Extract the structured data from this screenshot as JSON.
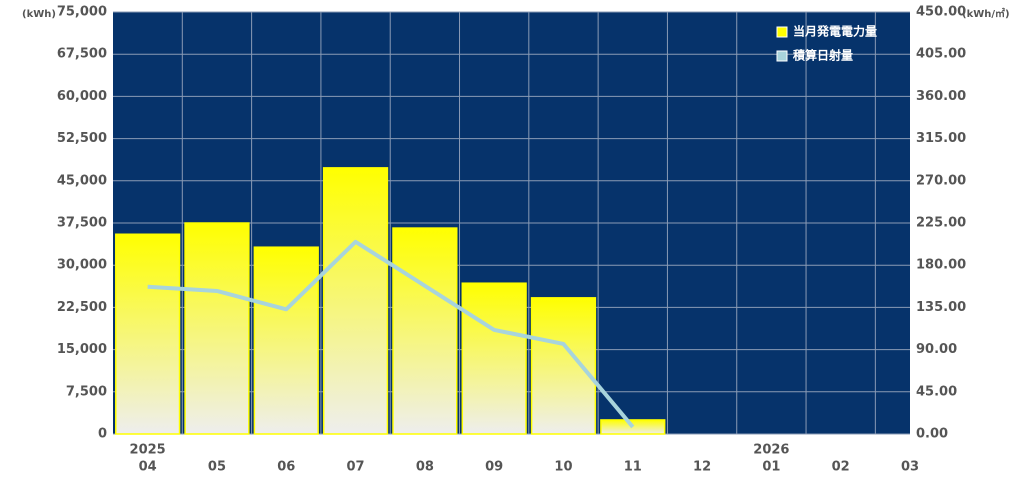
{
  "chart_data": {
    "type": "bar-line",
    "y_unit": "(kWh)",
    "y2_unit": "(kWh/㎡)",
    "categories": [
      "04",
      "05",
      "06",
      "07",
      "08",
      "09",
      "10",
      "11",
      "12",
      "01",
      "02",
      "03"
    ],
    "year_labels": [
      "2025",
      null,
      null,
      null,
      null,
      null,
      null,
      null,
      null,
      "2026",
      null,
      null
    ],
    "series": [
      {
        "name": "当月発電電力量",
        "color": "#ffff00",
        "type": "bar",
        "values": [
          35500,
          37500,
          33200,
          47300,
          36600,
          26800,
          24200,
          2500,
          null,
          null,
          null,
          null
        ]
      },
      {
        "name": "積算日射量",
        "color": "#a8d4dc",
        "type": "line",
        "axis": "y2",
        "values": [
          157,
          152.5,
          133,
          205,
          158,
          111,
          96,
          7.5,
          null,
          null,
          null,
          null
        ]
      }
    ],
    "ylim": [
      0,
      75000
    ],
    "yticks": [
      0,
      {
        "value": 7500,
        "label": "7,500"
      },
      {
        "value": 15000,
        "label": "15,000"
      },
      {
        "value": 22500,
        "label": "22,500"
      },
      {
        "value": 30000,
        "label": "30,000"
      },
      {
        "value": 37500,
        "label": "37,500"
      },
      {
        "value": 45000,
        "label": "45,000"
      },
      {
        "value": 52500,
        "label": "52,500"
      },
      {
        "value": 60000,
        "label": "60,000"
      },
      {
        "value": 67500,
        "label": "67,500"
      },
      {
        "value": 75000,
        "label": "75,000"
      }
    ],
    "y2lim": [
      0,
      450
    ],
    "y2ticks": [
      {
        "value": 0,
        "label": "0.00"
      },
      {
        "value": 45,
        "label": "45.00"
      },
      {
        "value": 90,
        "label": "90.00"
      },
      {
        "value": 135,
        "label": "135.00"
      },
      {
        "value": 180,
        "label": "180.00"
      },
      {
        "value": 225,
        "label": "225.00"
      },
      {
        "value": 270,
        "label": "270.00"
      },
      {
        "value": 315,
        "label": "315.00"
      },
      {
        "value": 360,
        "label": "360.00"
      },
      {
        "value": 405,
        "label": "405.00"
      },
      {
        "value": 450,
        "label": "450.00"
      }
    ],
    "background": "#06336b",
    "grid": true,
    "legend": "top-right"
  }
}
